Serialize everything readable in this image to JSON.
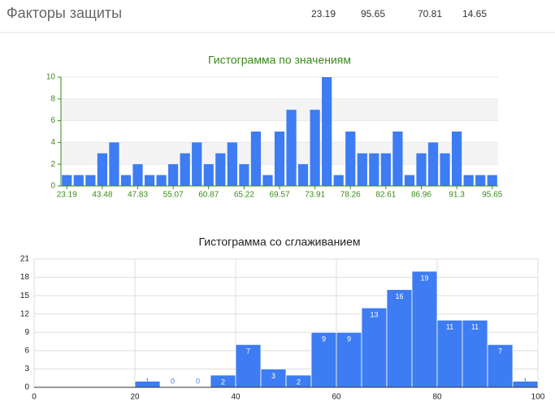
{
  "header": {
    "title": "Факторы защиты",
    "values": [
      23.19,
      95.65,
      70.81,
      14.65
    ]
  },
  "chart_data": [
    {
      "type": "bar",
      "title": "Гистограмма по значениям",
      "categories": [
        "23.19",
        null,
        null,
        "43.48",
        null,
        null,
        "47.83",
        null,
        null,
        "55.07",
        null,
        null,
        "60.87",
        null,
        null,
        "65.22",
        null,
        null,
        "69.57",
        null,
        null,
        "73.91",
        null,
        null,
        "78.26",
        null,
        null,
        "82.61",
        null,
        null,
        "86.96",
        null,
        null,
        "91.3",
        null,
        null,
        "95.65"
      ],
      "values": [
        1,
        1,
        1,
        3,
        4,
        1,
        2,
        1,
        1,
        2,
        3,
        4,
        2,
        3,
        4,
        2,
        5,
        1,
        5,
        7,
        2,
        7,
        10,
        1,
        5,
        3,
        3,
        3,
        5,
        1,
        3,
        4,
        3,
        5,
        1,
        1,
        1
      ],
      "color": "#3d7cf2",
      "ylim": [
        0,
        10
      ],
      "yticks": [
        0,
        2,
        4,
        6,
        8,
        10
      ],
      "grid": true
    },
    {
      "type": "histogram",
      "title": "Гистограмма со сглаживанием",
      "bins": [
        20,
        25,
        30,
        35,
        40,
        45,
        50,
        55,
        60,
        65,
        70,
        75,
        80,
        85,
        90,
        95,
        100
      ],
      "values": [
        1,
        0,
        0,
        2,
        7,
        3,
        2,
        9,
        9,
        13,
        16,
        19,
        11,
        11,
        7,
        1
      ],
      "color": "#3d7cf2",
      "xlim": [
        0,
        100
      ],
      "xticks": [
        0,
        20,
        40,
        60,
        80,
        100
      ],
      "ylim": [
        0,
        21
      ],
      "yticks": [
        0,
        3,
        6,
        9,
        12,
        15,
        18,
        21
      ],
      "grid": true
    }
  ]
}
